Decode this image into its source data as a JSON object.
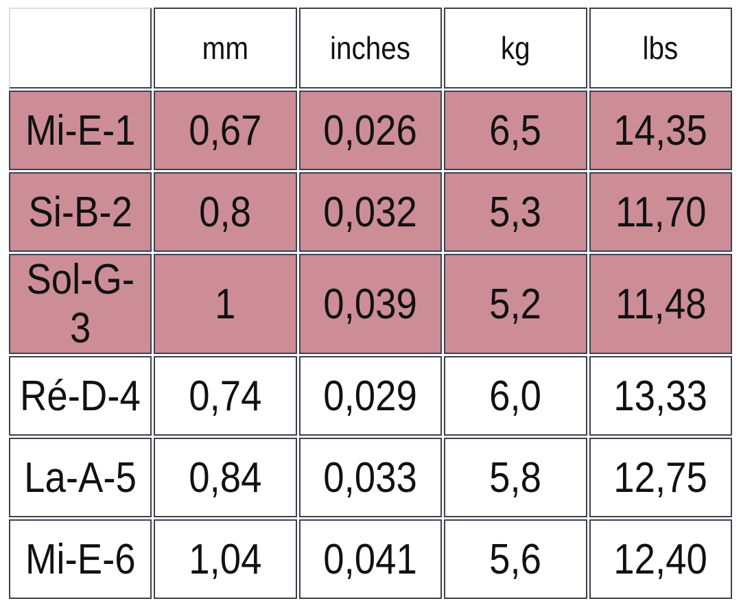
{
  "table": {
    "header": [
      "mm",
      "inches",
      "kg",
      "lbs"
    ],
    "rows": [
      [
        "Mi-E-1",
        "0,67",
        "0,026",
        "6,5",
        "14,35"
      ],
      [
        "Si-B-2",
        "0,8",
        "0,032",
        "5,3",
        "11,70"
      ],
      [
        "Sol-G-3",
        "1",
        "0,039",
        "5,2",
        "11,48"
      ],
      [
        "Ré-D-4",
        "0,74",
        "0,029",
        "6,0",
        "13,33"
      ],
      [
        "La-A-5",
        "0,84",
        "0,033",
        "5,8",
        "12,75"
      ],
      [
        "Mi-E-6",
        "1,04",
        "0,041",
        "5,6",
        "12,40"
      ]
    ],
    "highlighted_rows": [
      0,
      1,
      2
    ],
    "highlight_color": "#cd8d97"
  }
}
